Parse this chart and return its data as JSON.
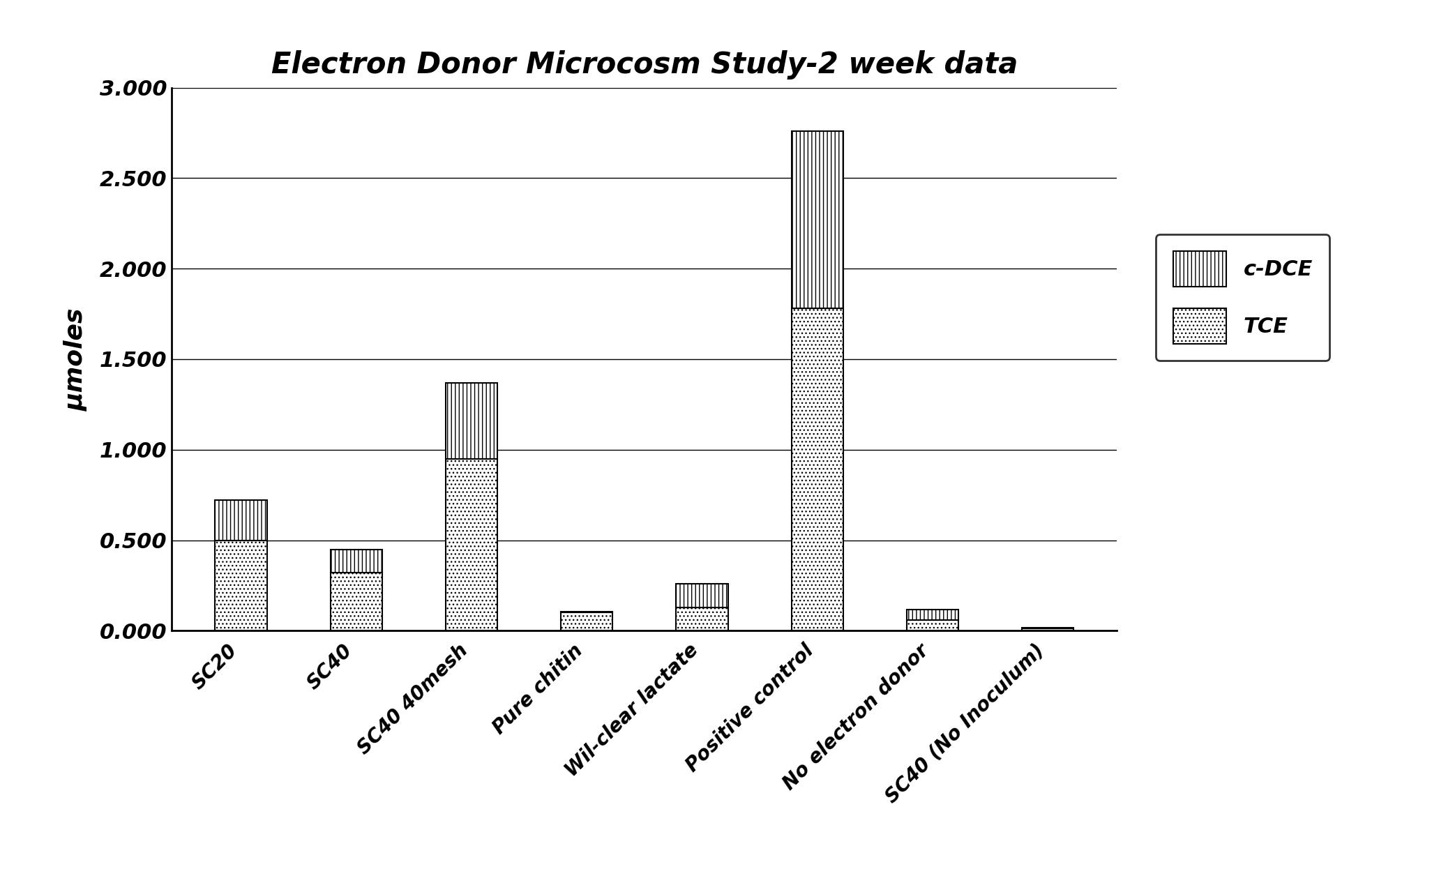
{
  "title": "Electron Donor Microcosm Study-2 week data",
  "ylabel": "μmoles",
  "categories": [
    "SC20",
    "SC40",
    "SC40 40mesh",
    "Pure chitin",
    "Wil-clear lactate",
    "Positive control",
    "No electron donor",
    "SC40 (No Inoculum)"
  ],
  "tce_values": [
    0.5,
    0.32,
    0.95,
    0.1,
    0.13,
    1.78,
    0.06,
    0.012
  ],
  "cdce_values": [
    0.22,
    0.13,
    0.42,
    0.005,
    0.13,
    0.98,
    0.055,
    0.005
  ],
  "ylim": [
    0,
    3.0
  ],
  "yticks": [
    0.0,
    0.5,
    1.0,
    1.5,
    2.0,
    2.5,
    3.0
  ],
  "ytick_labels": [
    "0.000",
    "0.500",
    "1.000",
    "1.500",
    "2.000",
    "2.500",
    "3.000"
  ],
  "cdce_hatch": "|||",
  "tce_hatch": "...",
  "bar_width": 0.45,
  "background_color": "#ffffff",
  "legend_cdce": "c-DCE",
  "legend_tce": "TCE",
  "title_fontsize": 30,
  "ylabel_fontsize": 26,
  "ytick_fontsize": 22,
  "xtick_fontsize": 20,
  "legend_fontsize": 22
}
